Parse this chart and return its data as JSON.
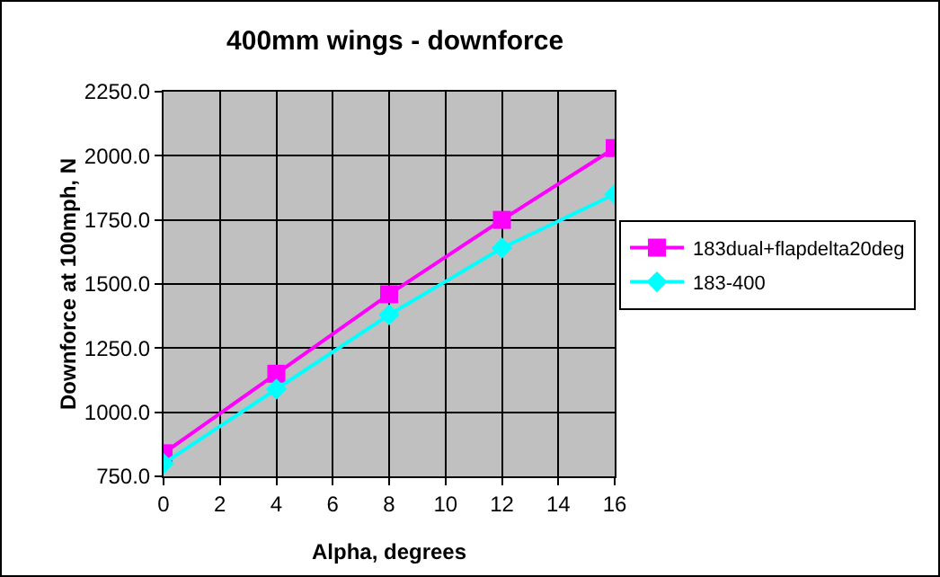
{
  "chart_data": {
    "type": "line",
    "title": "400mm wings - downforce",
    "xlabel": "Alpha, degrees",
    "ylabel": "Downforce at 100mph, N",
    "x": [
      0,
      4,
      8,
      12,
      16
    ],
    "series": [
      {
        "name": "183dual+flapdelta20deg",
        "color": "#ff00ff",
        "marker": "square",
        "values": [
          840,
          1150,
          1460,
          1750,
          2030
        ]
      },
      {
        "name": "183-400",
        "color": "#00ffff",
        "marker": "diamond",
        "values": [
          800,
          1090,
          1380,
          1640,
          1850
        ]
      }
    ],
    "xlim": [
      0,
      16
    ],
    "xticks": [
      0,
      2,
      4,
      6,
      8,
      10,
      12,
      14,
      16
    ],
    "ylim": [
      750,
      2250
    ],
    "yticks": [
      {
        "value": 750,
        "label": "750.0"
      },
      {
        "value": 1000,
        "label": "1000.0"
      },
      {
        "value": 1250,
        "label": "1250.0"
      },
      {
        "value": 1500,
        "label": "1500.0"
      },
      {
        "value": 1750,
        "label": "1750.0"
      },
      {
        "value": 2000,
        "label": "2000.0"
      },
      {
        "value": 2250,
        "label": "2250.0"
      }
    ],
    "grid": true,
    "legend": "right"
  }
}
